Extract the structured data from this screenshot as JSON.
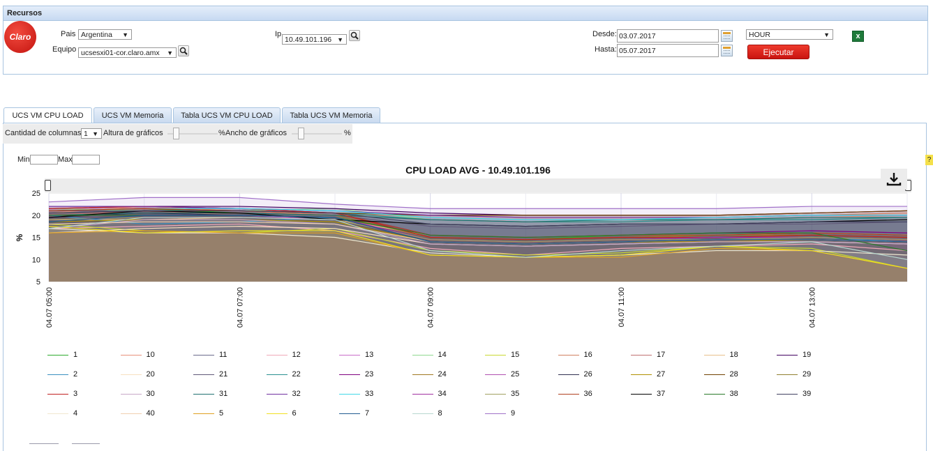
{
  "panel": {
    "title": "Recursos"
  },
  "logo": {
    "text": "Claro"
  },
  "filters": {
    "pais_label": "Pais",
    "pais_value": "Argentina",
    "equipo_label": "Equipo",
    "equipo_value": "ucsesxi01-cor.claro.amx",
    "ip_label": "Ip",
    "ip_value": "10.49.101.196",
    "desde_label": "Desde:",
    "desde_value": "03.07.2017",
    "hasta_label": "Hasta:",
    "hasta_value": "05.07.2017",
    "granularity": "HOUR",
    "run_label": "Ejecutar",
    "export_icon": "excel-icon"
  },
  "tabs": [
    {
      "label": "UCS VM CPU LOAD",
      "active": true
    },
    {
      "label": "UCS VM Memoria",
      "active": false
    },
    {
      "label": "Tabla UCS VM CPU LOAD",
      "active": false
    },
    {
      "label": "Tabla UCS VM Memoria",
      "active": false
    }
  ],
  "options": {
    "columns_label": "Cantidad de columnas",
    "columns_value": "1",
    "height_label": "Altura de gráficos",
    "height_unit": "%",
    "width_label": "Ancho de gráficos",
    "width_unit": "%",
    "min_label": "Min",
    "max_label": "Max"
  },
  "chart_data": {
    "type": "area",
    "title": "CPU LOAD AVG - 10.49.101.196",
    "ylabel": "%",
    "ylim": [
      5,
      25
    ],
    "yticks": [
      5,
      10,
      15,
      20,
      25
    ],
    "x": [
      "04.07 05:00",
      "04.07 06:00",
      "04.07 07:00",
      "04.07 08:00",
      "04.07 09:00",
      "04.07 10:00",
      "04.07 11:00",
      "04.07 12:00",
      "04.07 13:00",
      "04.07 14:00"
    ],
    "xtick_labels": [
      "04.07 05:00",
      "04.07 07:00",
      "04.07 09:00",
      "04.07 11:00",
      "04.07 13:00"
    ],
    "grid": true,
    "legend_position": "bottom",
    "series": [
      {
        "name": "1",
        "color": "#2eaa2e",
        "values": [
          21,
          21.5,
          20.5,
          19.5,
          15,
          14.5,
          15.5,
          16,
          16,
          15.5
        ]
      },
      {
        "name": "10",
        "color": "#e8917a",
        "values": [
          20.5,
          22,
          21,
          20,
          19,
          18.5,
          18.5,
          19,
          19.5,
          20
        ]
      },
      {
        "name": "11",
        "color": "#6a6a8a",
        "values": [
          18.5,
          21,
          20.5,
          19.5,
          14,
          13.5,
          14,
          15,
          14.5,
          14
        ]
      },
      {
        "name": "12",
        "color": "#f0a8b8",
        "values": [
          17,
          17.5,
          18,
          16.5,
          12.5,
          11,
          12.5,
          13,
          13.5,
          12
        ]
      },
      {
        "name": "13",
        "color": "#c86cc8",
        "values": [
          19.5,
          20.5,
          20,
          19,
          14.5,
          14,
          14.5,
          15,
          15,
          14.5
        ]
      },
      {
        "name": "14",
        "color": "#8fd88f",
        "values": [
          21.5,
          21,
          21,
          21.5,
          19,
          18.5,
          19,
          19,
          19.5,
          19.5
        ]
      },
      {
        "name": "15",
        "color": "#c8d830",
        "values": [
          18,
          16.5,
          16,
          17,
          12,
          11,
          11.5,
          13,
          12.5,
          8
        ]
      },
      {
        "name": "16",
        "color": "#d08060",
        "values": [
          21,
          21.5,
          21,
          20,
          20,
          19.5,
          19.5,
          19.5,
          20,
          20.5
        ]
      },
      {
        "name": "17",
        "color": "#c07070",
        "values": [
          20,
          21,
          20,
          19.5,
          15,
          14.5,
          15,
          15.5,
          15.5,
          15
        ]
      },
      {
        "name": "18",
        "color": "#e8c08a",
        "values": [
          19,
          19,
          19.5,
          19,
          15.5,
          15,
          15.5,
          15.5,
          16,
          15.5
        ]
      },
      {
        "name": "19",
        "color": "#400060",
        "values": [
          22,
          22,
          22,
          21.5,
          20.5,
          20,
          20,
          20,
          20.5,
          21
        ]
      },
      {
        "name": "2",
        "color": "#3a90c0",
        "values": [
          20,
          18,
          18.5,
          19.5,
          14,
          13.5,
          14,
          14.5,
          15,
          14
        ]
      },
      {
        "name": "20",
        "color": "#f8e0c0",
        "values": [
          16,
          17,
          17.5,
          17,
          13.5,
          13,
          13.5,
          14,
          14,
          13.5
        ]
      },
      {
        "name": "21",
        "color": "#605878",
        "values": [
          21,
          21,
          20.5,
          20,
          17.5,
          17,
          17.5,
          18,
          18,
          18.5
        ]
      },
      {
        "name": "22",
        "color": "#2a9090",
        "values": [
          20.5,
          21,
          21,
          20.5,
          19,
          18.5,
          18.5,
          19,
          19,
          19.5
        ]
      },
      {
        "name": "23",
        "color": "#800080",
        "values": [
          21.5,
          22,
          21.5,
          20.5,
          15.5,
          15,
          15.5,
          16,
          16.5,
          16
        ]
      },
      {
        "name": "24",
        "color": "#a07820",
        "values": [
          20,
          20.5,
          20.5,
          20,
          15,
          14.5,
          15,
          15,
          15.5,
          15
        ]
      },
      {
        "name": "25",
        "color": "#b050b0",
        "values": [
          19,
          19.5,
          19.5,
          19,
          14.5,
          14,
          14.5,
          15,
          15,
          14.5
        ]
      },
      {
        "name": "26",
        "color": "#303050",
        "values": [
          19.5,
          20.5,
          20,
          19.5,
          14,
          13.5,
          14,
          14.5,
          14.5,
          14
        ]
      },
      {
        "name": "27",
        "color": "#b09000",
        "values": [
          18.5,
          19,
          19,
          18.5,
          14,
          13.5,
          14,
          14,
          14.5,
          14
        ]
      },
      {
        "name": "28",
        "color": "#704000",
        "values": [
          21,
          21.5,
          21,
          20.5,
          20,
          20,
          20,
          20,
          20.5,
          21
        ]
      },
      {
        "name": "29",
        "color": "#908030",
        "values": [
          20.5,
          21,
          20.5,
          20,
          15,
          14.5,
          15,
          15.5,
          15.5,
          15
        ]
      },
      {
        "name": "3",
        "color": "#c02020",
        "values": [
          21.5,
          22,
          21.5,
          20.5,
          15,
          14.5,
          15,
          15,
          15.5,
          15
        ]
      },
      {
        "name": "30",
        "color": "#c8a8c8",
        "values": [
          17,
          19,
          19,
          18,
          13.5,
          13,
          13.5,
          14,
          14,
          13.5
        ]
      },
      {
        "name": "31",
        "color": "#207070",
        "values": [
          20,
          20.5,
          20.5,
          20,
          19,
          18.5,
          19,
          19,
          19.5,
          19.5
        ]
      },
      {
        "name": "32",
        "color": "#7030a0",
        "values": [
          22,
          22,
          21.5,
          21,
          20,
          19.5,
          19.5,
          19.5,
          20,
          20
        ]
      },
      {
        "name": "33",
        "color": "#40d8e8",
        "values": [
          21,
          21.5,
          21.5,
          21,
          19.5,
          19,
          19,
          19.5,
          20,
          20
        ]
      },
      {
        "name": "34",
        "color": "#a030a0",
        "values": [
          20,
          20,
          20,
          19.5,
          14.5,
          14,
          14.5,
          15,
          15,
          14.5
        ]
      },
      {
        "name": "35",
        "color": "#a0a060",
        "values": [
          19,
          19.5,
          19.5,
          19,
          14.5,
          14,
          14.5,
          14.5,
          15,
          14.5
        ]
      },
      {
        "name": "36",
        "color": "#b04020",
        "values": [
          21,
          21.5,
          21,
          20.5,
          15.5,
          15,
          15.5,
          15.5,
          16,
          15.5
        ]
      },
      {
        "name": "37",
        "color": "#000000",
        "values": [
          19.5,
          21,
          20.5,
          19,
          18,
          17.5,
          18,
          18,
          18.5,
          19
        ]
      },
      {
        "name": "38",
        "color": "#2a7a2a",
        "values": [
          20,
          20,
          20,
          19.5,
          15.5,
          15,
          15.5,
          16,
          16,
          12
        ]
      },
      {
        "name": "39",
        "color": "#404060",
        "values": [
          20.5,
          21,
          21,
          20.5,
          18,
          17.5,
          18,
          18,
          18.5,
          18.5
        ]
      },
      {
        "name": "4",
        "color": "#f0e8d0",
        "values": [
          17,
          16,
          16,
          15,
          11.5,
          10.5,
          11,
          12,
          12,
          11
        ]
      },
      {
        "name": "40",
        "color": "#f0d0b0",
        "values": [
          18,
          18.5,
          18.5,
          18,
          14,
          13.5,
          14,
          14.5,
          14.5,
          14
        ]
      },
      {
        "name": "5",
        "color": "#e0a020",
        "values": [
          16,
          16.5,
          16,
          16,
          11,
          10.5,
          10.5,
          12.5,
          12,
          8
        ]
      },
      {
        "name": "6",
        "color": "#f0e020",
        "values": [
          17.5,
          16,
          16.5,
          16.5,
          11,
          10.5,
          11,
          13,
          12,
          8
        ]
      },
      {
        "name": "7",
        "color": "#205a90",
        "values": [
          18.5,
          20,
          20,
          19.5,
          14,
          13.5,
          14,
          14.5,
          14.5,
          14
        ]
      },
      {
        "name": "8",
        "color": "#b8d8d0",
        "values": [
          17,
          19.5,
          19.5,
          19,
          12,
          10.5,
          12,
          13,
          14,
          10
        ]
      },
      {
        "name": "9",
        "color": "#a070c8",
        "values": [
          23,
          24,
          24,
          22.5,
          21.5,
          21.5,
          21.5,
          21.5,
          22,
          22
        ]
      }
    ]
  }
}
